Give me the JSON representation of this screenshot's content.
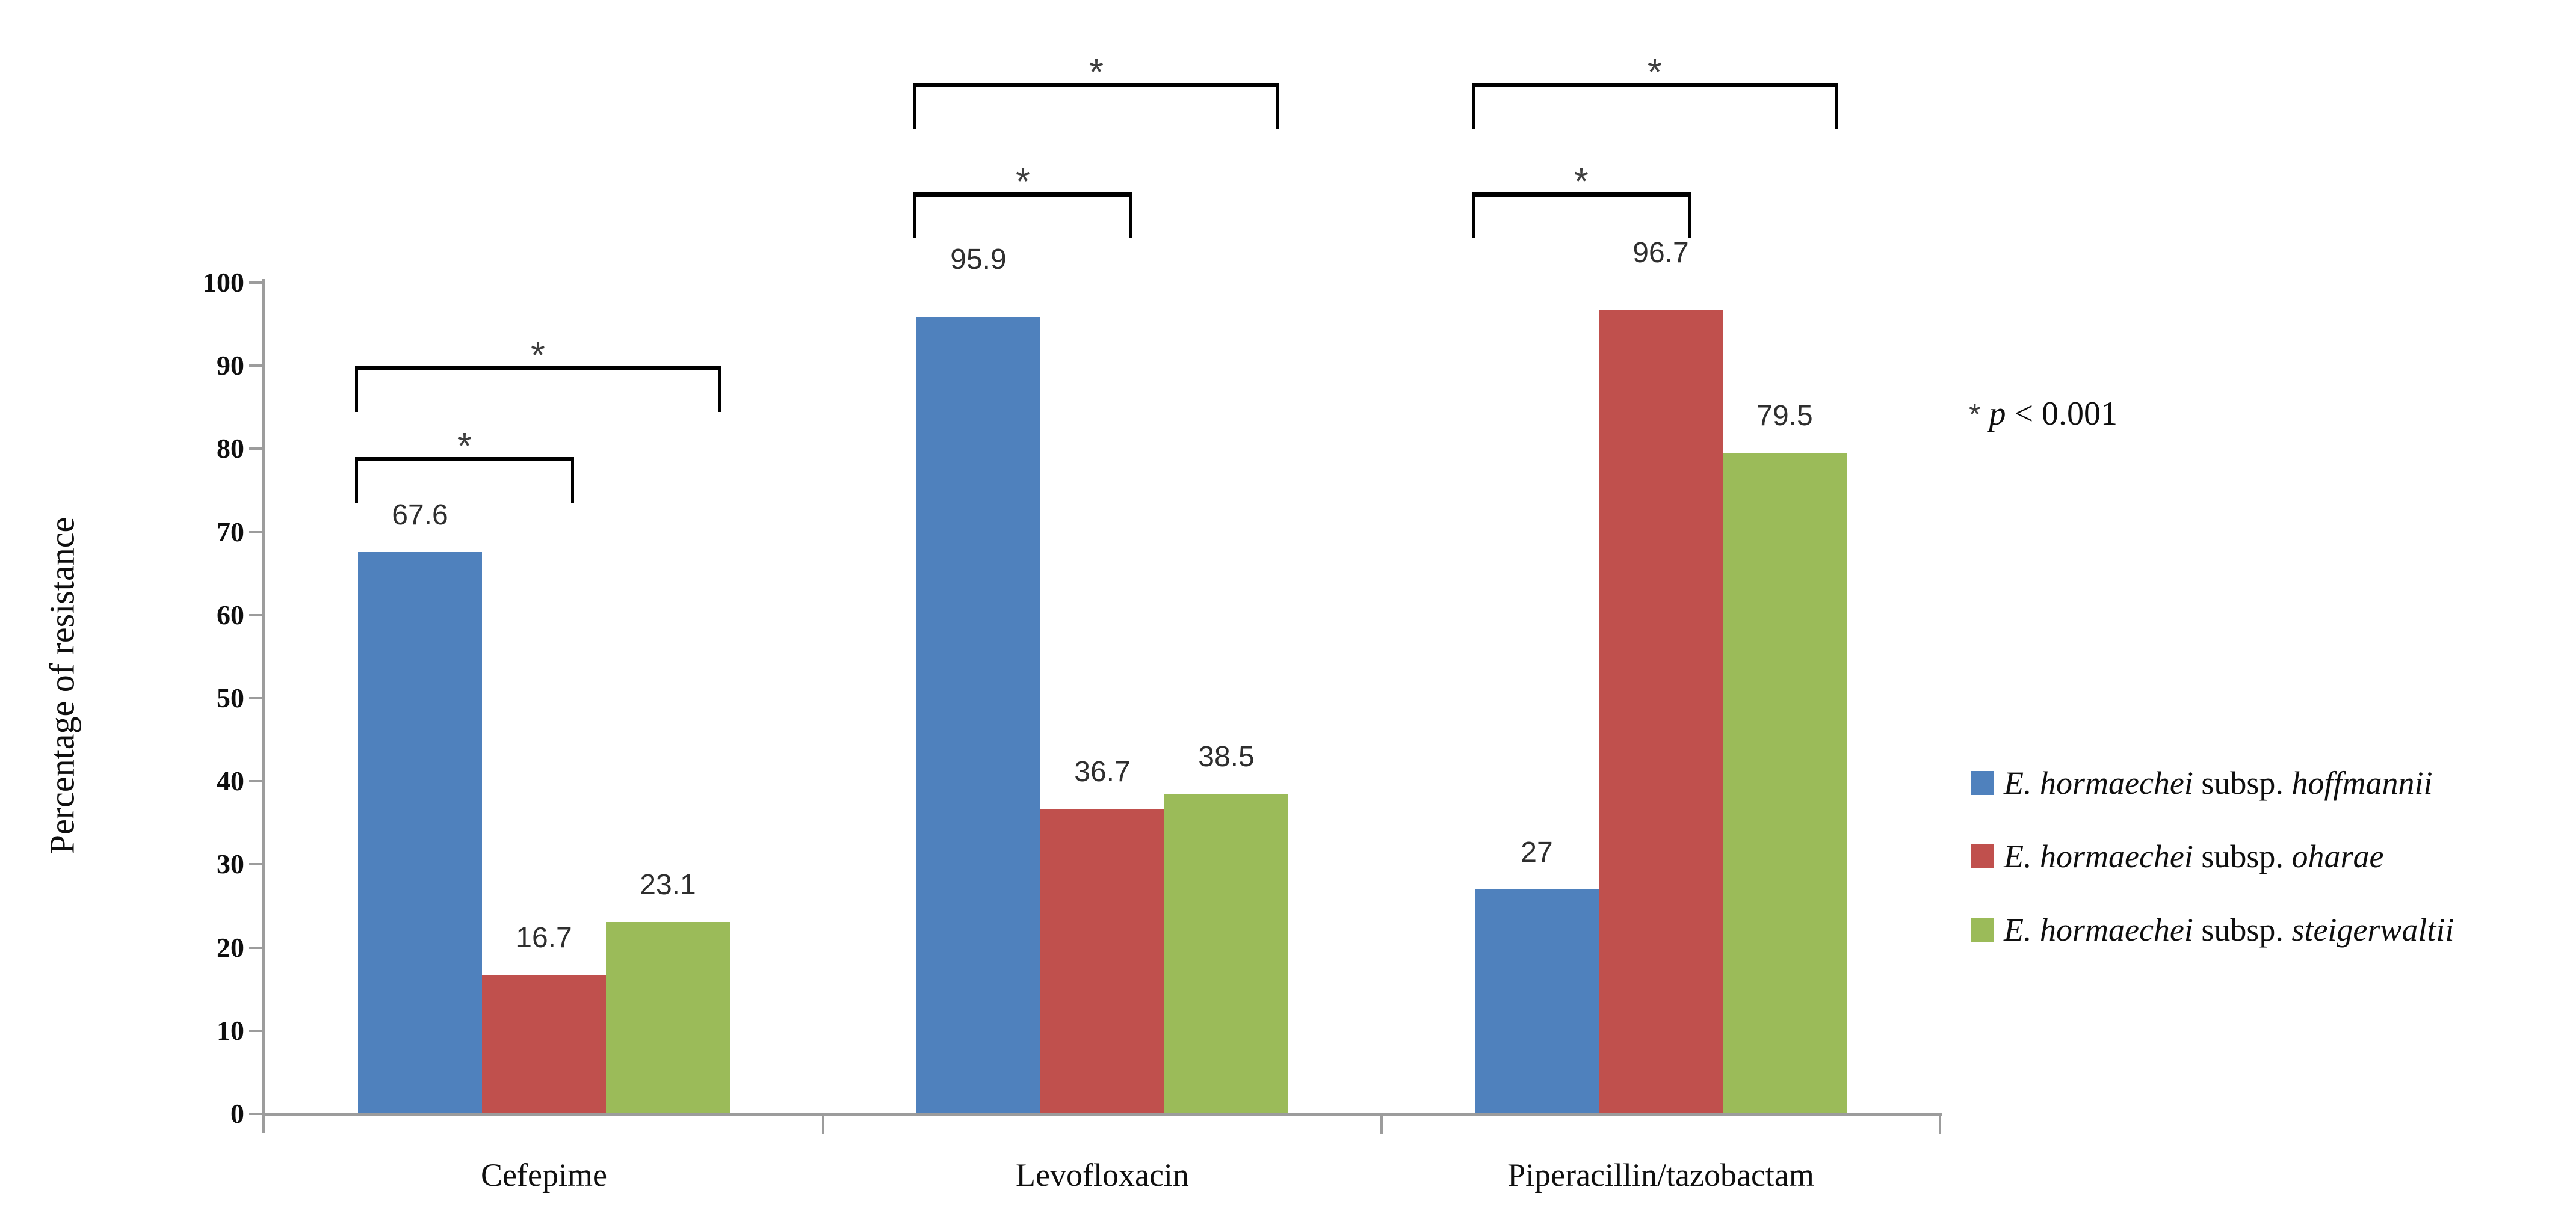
{
  "chart_data": {
    "type": "bar",
    "title": "",
    "xlabel": "",
    "ylabel": "Percentage of resistance",
    "ylim": [
      0,
      100
    ],
    "yticks": [
      0,
      10,
      20,
      30,
      40,
      50,
      60,
      70,
      80,
      90,
      100
    ],
    "grid": false,
    "legend_position": "right",
    "categories": [
      "Cefepime",
      "Levofloxacin",
      "Piperacillin/tazobactam"
    ],
    "series": [
      {
        "name": "E. hormaechei subsp. hoffmannii",
        "name_parts": {
          "genus": "E. hormaechei",
          "connector": " subsp. ",
          "subspecies": "hoffmannii"
        },
        "color": "#4F81BD",
        "values": [
          67.6,
          95.9,
          27
        ],
        "labels": [
          "67.6",
          "95.9",
          "27"
        ]
      },
      {
        "name": "E. hormaechei subsp. oharae",
        "name_parts": {
          "genus": "E. hormaechei",
          "connector": " subsp. ",
          "subspecies": "oharae"
        },
        "color": "#C0504D",
        "values": [
          16.7,
          36.7,
          96.7
        ],
        "labels": [
          "16.7",
          "36.7",
          "96.7"
        ]
      },
      {
        "name": "E. hormaechei subsp. steigerwaltii",
        "name_parts": {
          "genus": "E. hormaechei",
          "connector": " subsp. ",
          "subspecies": "steigerwaltii"
        },
        "color": "#9BBB59",
        "values": [
          23.1,
          38.5,
          79.5
        ],
        "labels": [
          "23.1",
          "38.5",
          "79.5"
        ]
      }
    ],
    "significance": {
      "marker": "*",
      "note_parts": {
        "star": "*",
        "p": "p",
        "rest": " < 0.001"
      },
      "note": "* p < 0.001",
      "brackets": [
        {
          "category": "Cefepime",
          "between": [
            "E. hormaechei subsp. hoffmannii",
            "E. hormaechei subsp. oharae"
          ],
          "label": "*"
        },
        {
          "category": "Cefepime",
          "between": [
            "E. hormaechei subsp. hoffmannii",
            "E. hormaechei subsp. steigerwaltii"
          ],
          "label": "*"
        },
        {
          "category": "Levofloxacin",
          "between": [
            "E. hormaechei subsp. hoffmannii",
            "E. hormaechei subsp. oharae"
          ],
          "label": "*"
        },
        {
          "category": "Levofloxacin",
          "between": [
            "E. hormaechei subsp. hoffmannii",
            "E. hormaechei subsp. steigerwaltii"
          ],
          "label": "*"
        },
        {
          "category": "Piperacillin/tazobactam",
          "between": [
            "E. hormaechei subsp. hoffmannii",
            "E. hormaechei subsp. oharae"
          ],
          "label": "*"
        },
        {
          "category": "Piperacillin/tazobactam",
          "between": [
            "E. hormaechei subsp. hoffmannii",
            "E. hormaechei subsp. steigerwaltii"
          ],
          "label": "*"
        }
      ]
    },
    "axis_color": "#9c9c9c",
    "bracket_color": "#000000"
  }
}
